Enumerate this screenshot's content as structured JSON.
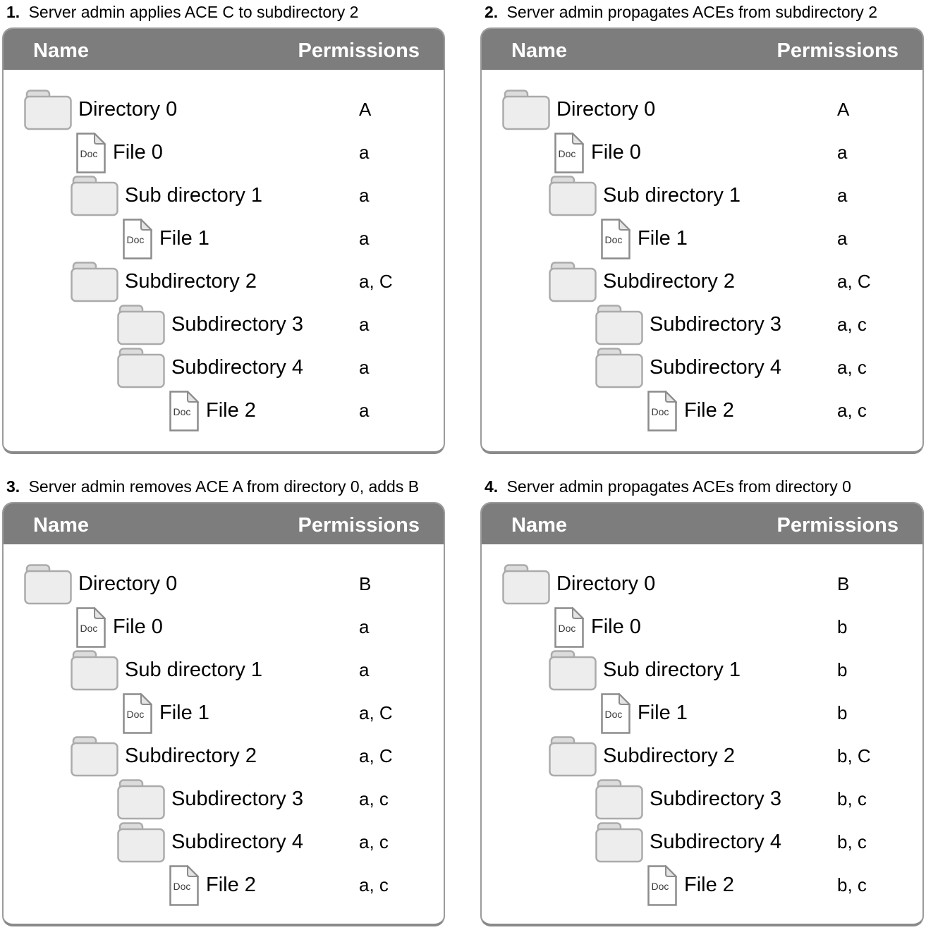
{
  "doc_icon_label": "Doc",
  "colors": {
    "header_bar": "#7d7d7d",
    "header_text": "#ffffff",
    "panel_border": "#9b9b9b",
    "panel_border_bottom": "#8a8a8a",
    "folder_fill": "#ededed",
    "folder_tab_fill": "#dcdcdc",
    "folder_stroke": "#ababab",
    "doc_stroke": "#8c8c8c",
    "doc_fold_fill": "#e4e4e4",
    "doc_label_color": "#3a3a3a",
    "body_text": "#000000"
  },
  "panels": [
    {
      "number": "1.",
      "title": "Server admin applies ACE C to subdirectory 2",
      "columns": {
        "name": "Name",
        "permissions": "Permissions"
      },
      "rows": [
        {
          "name": "Directory 0",
          "type": "folder",
          "level": 0,
          "permissions": "A"
        },
        {
          "name": "File 0",
          "type": "doc",
          "level": 1,
          "permissions": "a"
        },
        {
          "name": "Sub directory 1",
          "type": "folder",
          "level": 1,
          "permissions": "a"
        },
        {
          "name": "File 1",
          "type": "doc",
          "level": 2,
          "permissions": "a"
        },
        {
          "name": "Subdirectory 2",
          "type": "folder",
          "level": 1,
          "permissions": "a, C"
        },
        {
          "name": "Subdirectory 3",
          "type": "folder",
          "level": 2,
          "permissions": "a"
        },
        {
          "name": "Subdirectory 4",
          "type": "folder",
          "level": 2,
          "permissions": "a"
        },
        {
          "name": "File 2",
          "type": "doc",
          "level": 3,
          "permissions": "a"
        }
      ]
    },
    {
      "number": "2.",
      "title": "Server admin propagates ACEs from subdirectory 2",
      "columns": {
        "name": "Name",
        "permissions": "Permissions"
      },
      "rows": [
        {
          "name": "Directory 0",
          "type": "folder",
          "level": 0,
          "permissions": "A"
        },
        {
          "name": "File 0",
          "type": "doc",
          "level": 1,
          "permissions": "a"
        },
        {
          "name": "Sub directory 1",
          "type": "folder",
          "level": 1,
          "permissions": "a"
        },
        {
          "name": "File 1",
          "type": "doc",
          "level": 2,
          "permissions": "a"
        },
        {
          "name": "Subdirectory 2",
          "type": "folder",
          "level": 1,
          "permissions": "a, C"
        },
        {
          "name": "Subdirectory 3",
          "type": "folder",
          "level": 2,
          "permissions": "a, c"
        },
        {
          "name": "Subdirectory 4",
          "type": "folder",
          "level": 2,
          "permissions": "a, c"
        },
        {
          "name": "File 2",
          "type": "doc",
          "level": 3,
          "permissions": "a, c"
        }
      ]
    },
    {
      "number": "3.",
      "title": "Server admin removes ACE A from directory 0, adds B",
      "columns": {
        "name": "Name",
        "permissions": "Permissions"
      },
      "rows": [
        {
          "name": "Directory 0",
          "type": "folder",
          "level": 0,
          "permissions": "B"
        },
        {
          "name": "File 0",
          "type": "doc",
          "level": 1,
          "permissions": "a"
        },
        {
          "name": "Sub directory 1",
          "type": "folder",
          "level": 1,
          "permissions": "a"
        },
        {
          "name": "File 1",
          "type": "doc",
          "level": 2,
          "permissions": "a, C"
        },
        {
          "name": "Subdirectory 2",
          "type": "folder",
          "level": 1,
          "permissions": "a, C"
        },
        {
          "name": "Subdirectory 3",
          "type": "folder",
          "level": 2,
          "permissions": "a, c"
        },
        {
          "name": "Subdirectory 4",
          "type": "folder",
          "level": 2,
          "permissions": "a, c"
        },
        {
          "name": "File 2",
          "type": "doc",
          "level": 3,
          "permissions": "a, c"
        }
      ]
    },
    {
      "number": "4.",
      "title": "Server admin propagates ACEs from directory 0",
      "columns": {
        "name": "Name",
        "permissions": "Permissions"
      },
      "rows": [
        {
          "name": "Directory 0",
          "type": "folder",
          "level": 0,
          "permissions": "B"
        },
        {
          "name": "File 0",
          "type": "doc",
          "level": 1,
          "permissions": "b"
        },
        {
          "name": "Sub directory 1",
          "type": "folder",
          "level": 1,
          "permissions": "b"
        },
        {
          "name": "File 1",
          "type": "doc",
          "level": 2,
          "permissions": "b"
        },
        {
          "name": "Subdirectory 2",
          "type": "folder",
          "level": 1,
          "permissions": "b, C"
        },
        {
          "name": "Subdirectory 3",
          "type": "folder",
          "level": 2,
          "permissions": "b, c"
        },
        {
          "name": "Subdirectory 4",
          "type": "folder",
          "level": 2,
          "permissions": "b, c"
        },
        {
          "name": "File 2",
          "type": "doc",
          "level": 3,
          "permissions": "b, c"
        }
      ]
    }
  ]
}
